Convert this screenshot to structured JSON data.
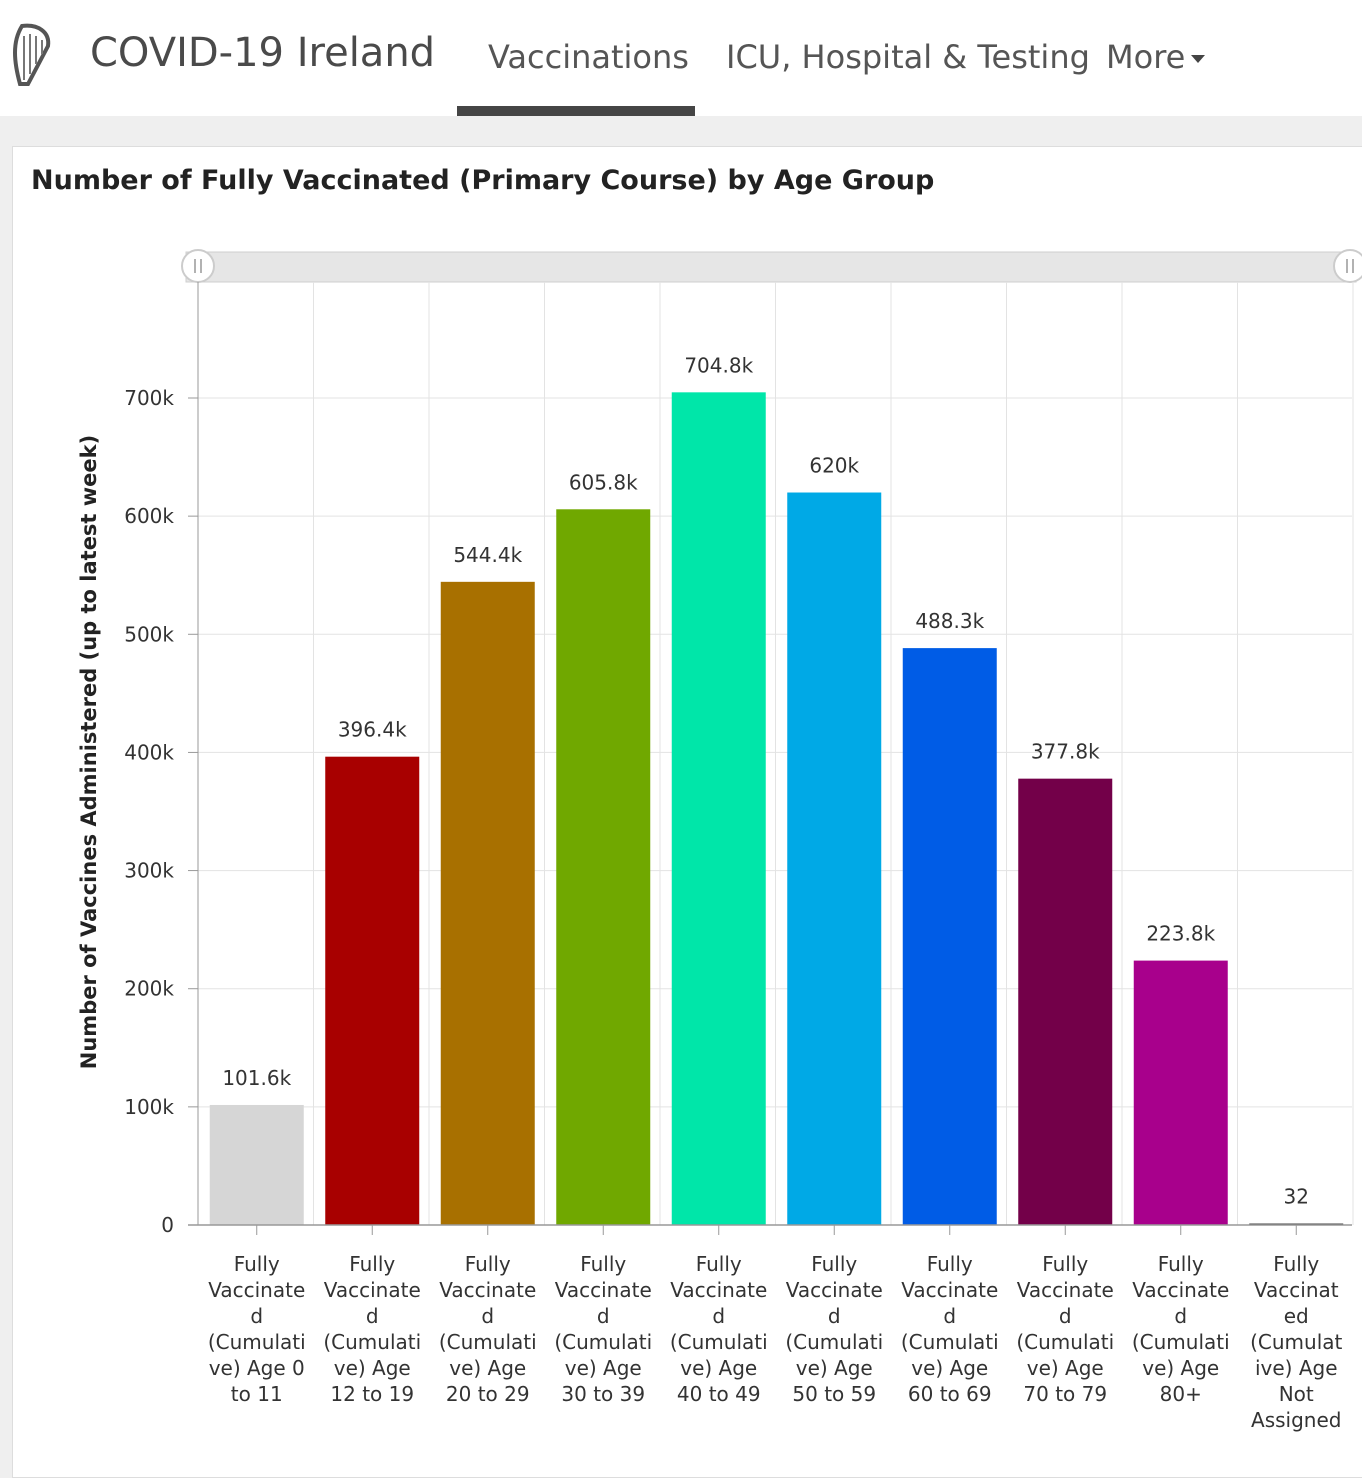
{
  "header": {
    "app_title": "COVID-19 Ireland",
    "nav": {
      "vaccinations": "Vaccinations",
      "icu": "ICU, Hospital & Testing",
      "more": "More"
    },
    "active_tab": "vaccinations",
    "logo_icon": "harp-icon"
  },
  "chart_data": {
    "type": "bar",
    "title": "Number of Fully Vaccinated (Primary Course) by Age Group",
    "xlabel": "",
    "ylabel": "Number of Vaccines Administered (up to latest week)",
    "ylim": [
      0,
      700000
    ],
    "y_ticks": [
      0,
      100000,
      200000,
      300000,
      400000,
      500000,
      600000,
      700000
    ],
    "y_tick_labels": [
      "0",
      "100k",
      "200k",
      "300k",
      "400k",
      "500k",
      "600k",
      "700k"
    ],
    "grid": true,
    "categories": [
      "Fully Vaccinated (Cumulative) Age 0 to 11",
      "Fully Vaccinated (Cumulative) Age 12 to 19",
      "Fully Vaccinated (Cumulative) Age 20 to 29",
      "Fully Vaccinated (Cumulative) Age 30 to 39",
      "Fully Vaccinated (Cumulative) Age 40 to 49",
      "Fully Vaccinated (Cumulative) Age 50 to 59",
      "Fully Vaccinated (Cumulative) Age 60 to 69",
      "Fully Vaccinated (Cumulative) Age 70 to 79",
      "Fully Vaccinated (Cumulative) Age 80+",
      "Fully Vaccinated (Cumulative) Age Not Assigned"
    ],
    "category_label_lines": [
      [
        "Fully",
        "Vaccinate",
        "d",
        "(Cumulati",
        "ve) Age 0",
        "to 11"
      ],
      [
        "Fully",
        "Vaccinate",
        "d",
        "(Cumulati",
        "ve) Age",
        "12 to 19"
      ],
      [
        "Fully",
        "Vaccinate",
        "d",
        "(Cumulati",
        "ve) Age",
        "20 to 29"
      ],
      [
        "Fully",
        "Vaccinate",
        "d",
        "(Cumulati",
        "ve) Age",
        "30 to 39"
      ],
      [
        "Fully",
        "Vaccinate",
        "d",
        "(Cumulati",
        "ve) Age",
        "40 to 49"
      ],
      [
        "Fully",
        "Vaccinate",
        "d",
        "(Cumulati",
        "ve) Age",
        "50 to 59"
      ],
      [
        "Fully",
        "Vaccinate",
        "d",
        "(Cumulati",
        "ve) Age",
        "60 to 69"
      ],
      [
        "Fully",
        "Vaccinate",
        "d",
        "(Cumulati",
        "ve) Age",
        "70 to 79"
      ],
      [
        "Fully",
        "Vaccinate",
        "d",
        "(Cumulati",
        "ve) Age",
        "80+"
      ],
      [
        "Fully",
        "Vaccinat",
        "ed",
        "(Cumulat",
        "ive) Age",
        "Not",
        "Assigned"
      ]
    ],
    "values": [
      101600,
      396400,
      544400,
      605800,
      704800,
      620000,
      488300,
      377800,
      223800,
      32
    ],
    "value_labels": [
      "101.6k",
      "396.4k",
      "544.4k",
      "605.8k",
      "704.8k",
      "620k",
      "488.3k",
      "377.8k",
      "223.8k",
      "32"
    ],
    "colors": [
      "#d6d6d6",
      "#a80000",
      "#a87000",
      "#70a800",
      "#00e6a9",
      "#00a9e6",
      "#005ce6",
      "#730049",
      "#a8008c",
      "#444444"
    ],
    "scrollbar": true
  }
}
